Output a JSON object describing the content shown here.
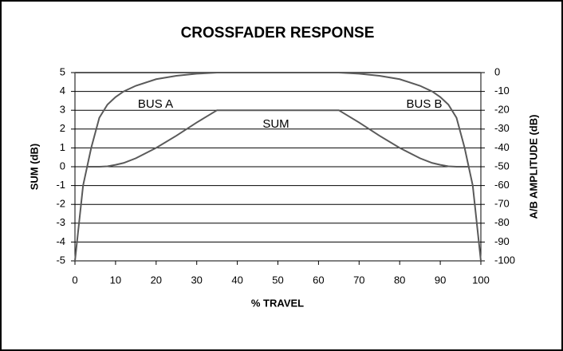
{
  "chart_data": {
    "type": "line",
    "title": "CROSSFADER RESPONSE",
    "x_label": "% TRAVEL",
    "y_label": "SUM (dB)",
    "y2_label": "A/B AMPLITUDE (dB)",
    "x": [
      0,
      0.5,
      1,
      2,
      3,
      4,
      6,
      8,
      10,
      12,
      15,
      20,
      25,
      30,
      35,
      40,
      45,
      50,
      55,
      60,
      65,
      70,
      75,
      80,
      85,
      88,
      90,
      92,
      94,
      96,
      97,
      98,
      99,
      99.5,
      100
    ],
    "series": [
      {
        "name": "BUS A",
        "color": "#5a5a5a",
        "axis": "y2",
        "values": [
          -100,
          -90,
          -80,
          -60,
          -50,
          -40,
          -24,
          -17,
          -13,
          -10,
          -7,
          -3.5,
          -1.7,
          -0.6,
          0,
          0,
          0,
          0,
          0,
          0,
          0,
          0,
          0,
          0,
          0,
          0,
          0,
          0,
          0,
          0,
          0,
          0,
          0,
          0,
          0
        ]
      },
      {
        "name": "BUS B",
        "color": "#5a5a5a",
        "axis": "y2",
        "values": [
          0,
          0,
          0,
          0,
          0,
          0,
          0,
          0,
          0,
          0,
          0,
          0,
          0,
          0,
          0,
          0,
          0,
          0,
          0,
          0,
          0,
          -0.6,
          -1.7,
          -3.5,
          -7,
          -10,
          -13,
          -17,
          -24,
          -40,
          -50,
          -60,
          -80,
          -90,
          -100
        ]
      },
      {
        "name": "SUM",
        "color": "#5a5a5a",
        "values": [
          null,
          null,
          null,
          null,
          0,
          0,
          0,
          0.02,
          0.1,
          0.2,
          0.45,
          1.0,
          1.65,
          2.35,
          3,
          3,
          3,
          3,
          3,
          3,
          3,
          2.35,
          1.65,
          1.0,
          0.45,
          0.2,
          0.1,
          0.02,
          0,
          0,
          0,
          null,
          null,
          null,
          null
        ]
      }
    ],
    "xlim": [
      0,
      100
    ],
    "xticks": [
      0,
      10,
      20,
      30,
      40,
      50,
      60,
      70,
      80,
      90,
      100
    ],
    "ylim": [
      -5,
      5
    ],
    "yticks": [
      -5,
      -4,
      -3,
      -2,
      -1,
      0,
      1,
      2,
      3,
      4,
      5
    ],
    "y2lim": [
      -100,
      0
    ],
    "y2ticks": [
      -100,
      -90,
      -80,
      -70,
      -60,
      -50,
      -40,
      -30,
      -20,
      -10,
      0
    ],
    "grid": true
  }
}
